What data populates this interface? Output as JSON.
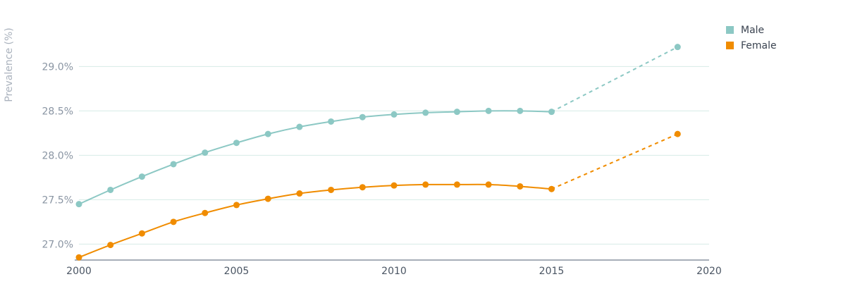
{
  "chart_data": {
    "type": "line",
    "ylabel": "Prevalence (%)",
    "xlim": [
      2000,
      2020
    ],
    "ylim": [
      26.82,
      29.4
    ],
    "x_ticks": [
      {
        "value": 2000,
        "label": "2000"
      },
      {
        "value": 2005,
        "label": "2005"
      },
      {
        "value": 2010,
        "label": "2010"
      },
      {
        "value": 2015,
        "label": "2015"
      },
      {
        "value": 2020,
        "label": "2020"
      }
    ],
    "y_ticks": [
      {
        "value": 27.0,
        "label": "27.0%"
      },
      {
        "value": 27.5,
        "label": "27.5%"
      },
      {
        "value": 28.0,
        "label": "28.0%"
      },
      {
        "value": 28.5,
        "label": "28.5%"
      },
      {
        "value": 29.0,
        "label": "29.0%"
      }
    ],
    "grid": true,
    "legend_position": "top-right",
    "series": [
      {
        "name": "Male",
        "color": "#8cc8c4",
        "x": [
          2000,
          2001,
          2002,
          2003,
          2004,
          2005,
          2006,
          2007,
          2008,
          2009,
          2010,
          2011,
          2012,
          2013,
          2014,
          2015
        ],
        "values": [
          27.45,
          27.61,
          27.76,
          27.9,
          28.03,
          28.14,
          28.24,
          28.32,
          28.38,
          28.43,
          28.46,
          28.48,
          28.49,
          28.5,
          28.5,
          28.49
        ],
        "projection": {
          "x": [
            2015,
            2019
          ],
          "values": [
            28.49,
            29.22
          ]
        }
      },
      {
        "name": "Female",
        "color": "#f08c00",
        "x": [
          2000,
          2001,
          2002,
          2003,
          2004,
          2005,
          2006,
          2007,
          2008,
          2009,
          2010,
          2011,
          2012,
          2013,
          2014,
          2015
        ],
        "values": [
          26.85,
          26.99,
          27.12,
          27.25,
          27.35,
          27.44,
          27.51,
          27.57,
          27.61,
          27.64,
          27.66,
          27.67,
          27.67,
          27.67,
          27.65,
          27.62
        ],
        "projection": {
          "x": [
            2015,
            2019
          ],
          "values": [
            27.62,
            28.24
          ]
        }
      }
    ]
  }
}
